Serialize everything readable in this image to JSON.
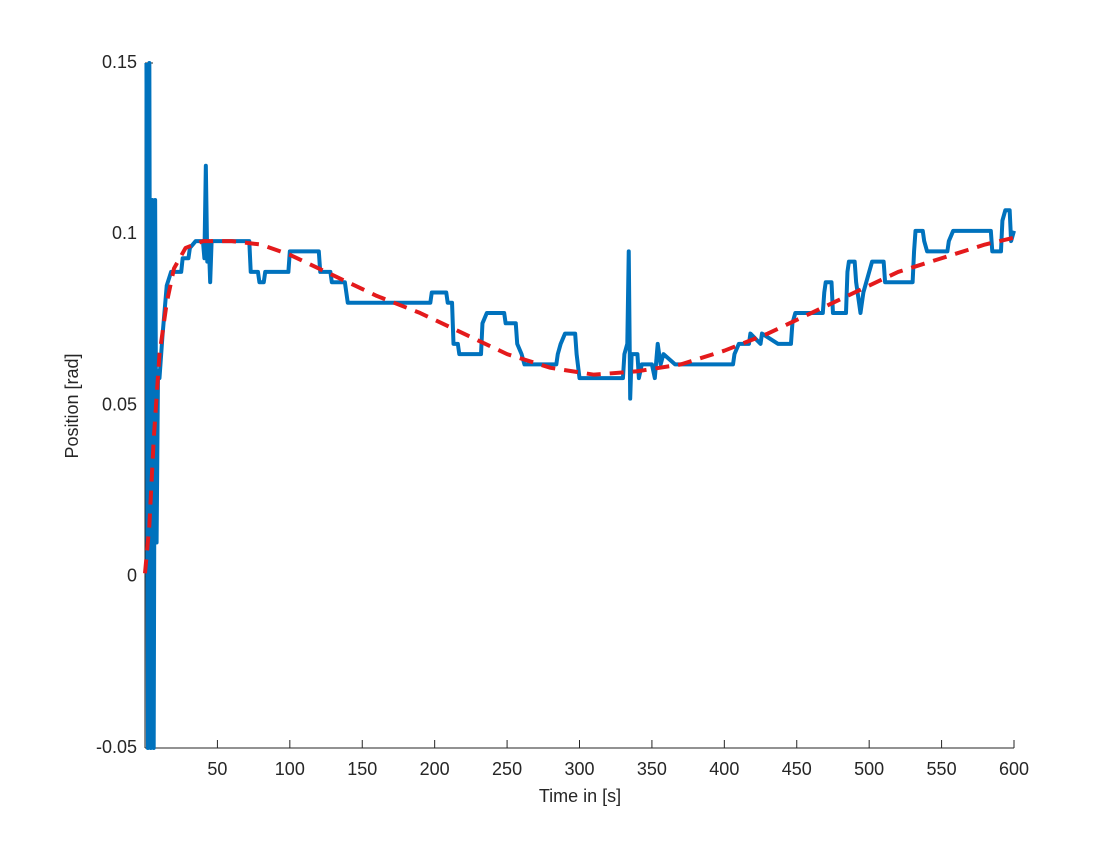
{
  "chart_data": {
    "type": "line",
    "xlabel": "Time in [s]",
    "ylabel": "Position [rad]",
    "xlim": [
      0,
      600
    ],
    "xticks": [
      50,
      100,
      150,
      200,
      250,
      300,
      350,
      400,
      450,
      500,
      550,
      600
    ],
    "ylim": [
      -0.05,
      0.15
    ],
    "yticks": [
      -0.05,
      0,
      0.05,
      0.1,
      0.15
    ],
    "series": [
      {
        "color": "#0072bd",
        "dash": false,
        "x": [
          1,
          2,
          3,
          4,
          5,
          6,
          7,
          8,
          9,
          10,
          12,
          15,
          18,
          25,
          26,
          30,
          31,
          35,
          40,
          41,
          42,
          43,
          44,
          45,
          46,
          72,
          73,
          78,
          79,
          82,
          83,
          99,
          100,
          120,
          121,
          128,
          129,
          138,
          139,
          140,
          197,
          198,
          208,
          209,
          212,
          213,
          216,
          217,
          232,
          233,
          236,
          248,
          249,
          256,
          257,
          260,
          262,
          284,
          285,
          287,
          290,
          297,
          298,
          300,
          330,
          331,
          333,
          334,
          335,
          336,
          340,
          341,
          343,
          350,
          352,
          354,
          356,
          358,
          366,
          406,
          407,
          410,
          417,
          418,
          425,
          426,
          437,
          446,
          447,
          449,
          468,
          469,
          470,
          474,
          475,
          484,
          485,
          486,
          490,
          491,
          494,
          496,
          500,
          502,
          510,
          511,
          530,
          531,
          532,
          537,
          538,
          540,
          554,
          555,
          558,
          584,
          585,
          591,
          592,
          594,
          597,
          598,
          600
        ],
        "values": [
          0.15,
          -0.05,
          0.15,
          -0.05,
          0.11,
          -0.05,
          0.11,
          0.01,
          0.06,
          0.058,
          0.07,
          0.085,
          0.089,
          0.089,
          0.093,
          0.093,
          0.096,
          0.098,
          0.098,
          0.093,
          0.12,
          0.092,
          0.098,
          0.086,
          0.098,
          0.098,
          0.089,
          0.089,
          0.086,
          0.086,
          0.089,
          0.089,
          0.095,
          0.095,
          0.089,
          0.089,
          0.086,
          0.086,
          0.083,
          0.08,
          0.08,
          0.083,
          0.083,
          0.08,
          0.08,
          0.068,
          0.068,
          0.065,
          0.065,
          0.074,
          0.077,
          0.077,
          0.074,
          0.074,
          0.068,
          0.065,
          0.062,
          0.062,
          0.065,
          0.068,
          0.071,
          0.071,
          0.065,
          0.058,
          0.058,
          0.065,
          0.068,
          0.095,
          0.052,
          0.065,
          0.065,
          0.058,
          0.062,
          0.062,
          0.058,
          0.068,
          0.062,
          0.065,
          0.062,
          0.062,
          0.065,
          0.068,
          0.068,
          0.071,
          0.068,
          0.071,
          0.068,
          0.068,
          0.074,
          0.077,
          0.077,
          0.083,
          0.086,
          0.086,
          0.077,
          0.077,
          0.089,
          0.092,
          0.092,
          0.086,
          0.077,
          0.083,
          0.089,
          0.092,
          0.092,
          0.086,
          0.086,
          0.095,
          0.101,
          0.101,
          0.098,
          0.095,
          0.095,
          0.098,
          0.101,
          0.101,
          0.095,
          0.095,
          0.104,
          0.107,
          0.107,
          0.098,
          0.101
        ]
      },
      {
        "color": "#e41a1c",
        "dash": true,
        "x": [
          0,
          3,
          6,
          10,
          15,
          20,
          28,
          40,
          60,
          80,
          100,
          130,
          160,
          190,
          220,
          250,
          280,
          310,
          340,
          370,
          400,
          430,
          460,
          490,
          520,
          550,
          580,
          600
        ],
        "values": [
          0.001,
          0.015,
          0.04,
          0.065,
          0.08,
          0.09,
          0.096,
          0.098,
          0.098,
          0.097,
          0.094,
          0.088,
          0.082,
          0.077,
          0.071,
          0.065,
          0.061,
          0.059,
          0.06,
          0.062,
          0.066,
          0.071,
          0.077,
          0.083,
          0.089,
          0.093,
          0.097,
          0.099
        ]
      }
    ]
  }
}
